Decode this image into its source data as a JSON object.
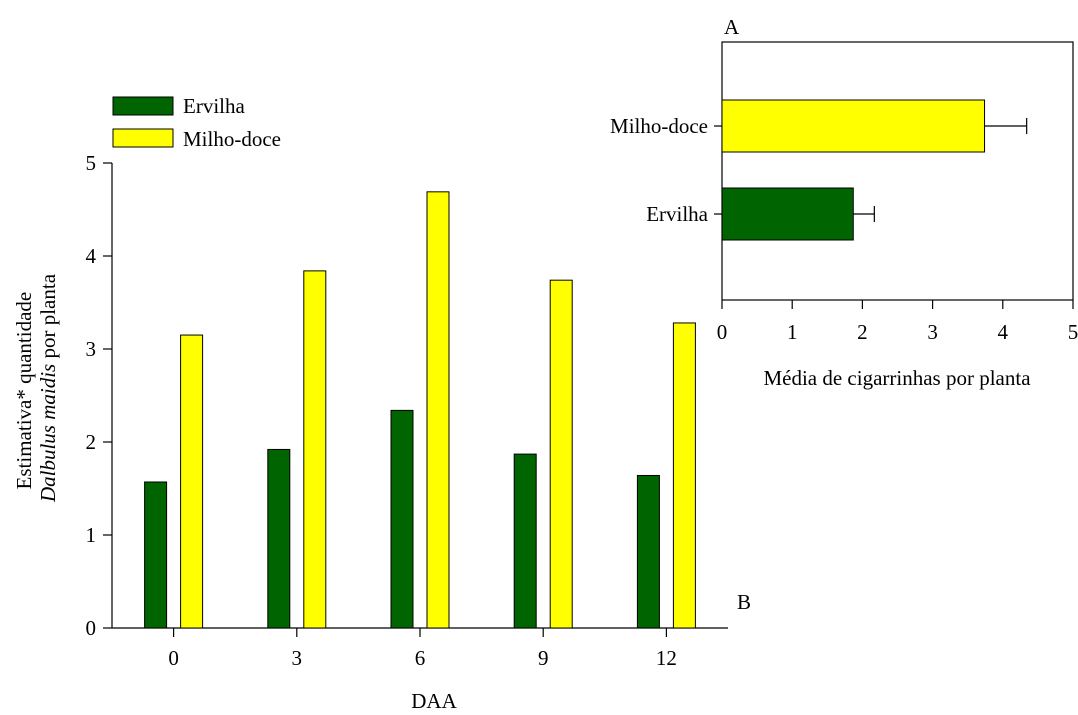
{
  "chart_data": [
    {
      "panel": "B",
      "type": "bar",
      "orientation": "vertical",
      "xlabel": "DAA",
      "ylabel_line1": "Estimativa* quantidade",
      "ylabel_line2_italic": "Dalbulus maidis",
      "ylabel_line2_rest": " por planta",
      "categories": [
        "0",
        "3",
        "6",
        "9",
        "12"
      ],
      "ylim": [
        0,
        5
      ],
      "yticks": [
        "0",
        "1",
        "2",
        "3",
        "4",
        "5"
      ],
      "legend_placement": "top-left",
      "series": [
        {
          "name": "Ervilha",
          "color": "#006400",
          "values": [
            1.57,
            1.92,
            2.34,
            1.87,
            1.64
          ]
        },
        {
          "name": "Milho-doce",
          "color": "#ffff00",
          "values": [
            3.15,
            3.84,
            4.69,
            3.74,
            3.28
          ]
        }
      ]
    },
    {
      "panel": "A",
      "type": "bar",
      "orientation": "horizontal",
      "xlabel": "Média de cigarrinhas por planta",
      "xlim": [
        0,
        5
      ],
      "xticks": [
        "0",
        "1",
        "2",
        "3",
        "4",
        "5"
      ],
      "categories": [
        "Milho-doce",
        "Ervilha"
      ],
      "colors": [
        "#ffff00",
        "#006400"
      ],
      "values": [
        3.74,
        1.87
      ],
      "errors": [
        0.6,
        0.3
      ]
    }
  ]
}
